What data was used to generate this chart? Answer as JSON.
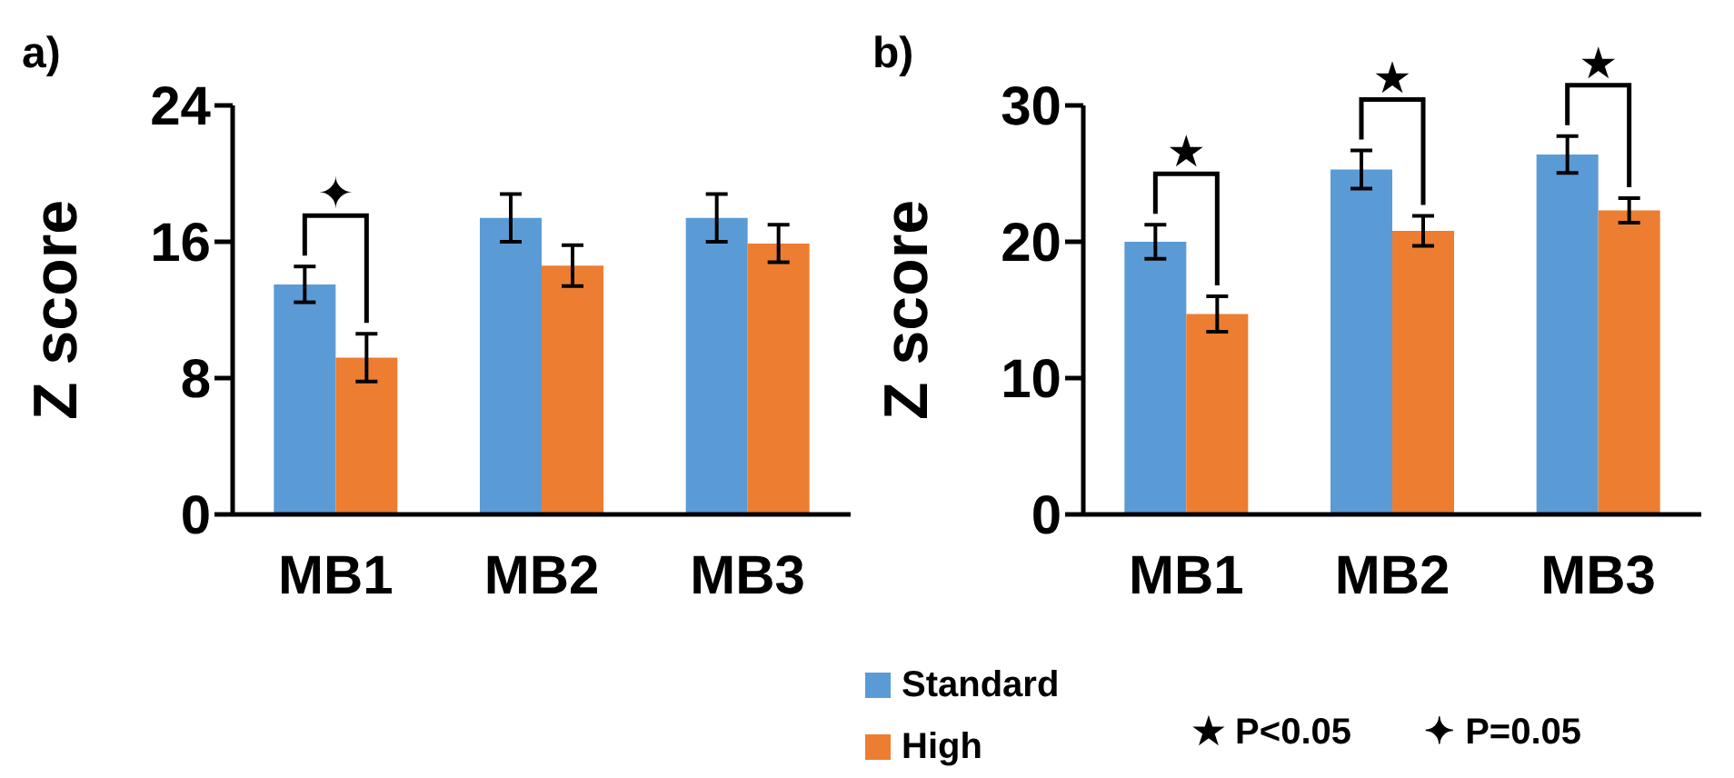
{
  "chart_data": [
    {
      "type": "bar",
      "title": "a)",
      "ylabel": "Z score",
      "categories": [
        "MB1",
        "MB2",
        "MB3"
      ],
      "series": [
        {
          "color": "#5b9bd5",
          "values": [
            13.5,
            17.4,
            17.4
          ],
          "errors": [
            1.05,
            1.4,
            1.4
          ]
        },
        {
          "color": "#ed7d31",
          "values": [
            9.2,
            14.6,
            15.9
          ],
          "errors": [
            1.4,
            1.2,
            1.1
          ]
        }
      ],
      "ylim": [
        0,
        24
      ],
      "yticks": [
        0,
        8,
        16,
        24
      ],
      "grid": false,
      "legend": false,
      "annotations": [
        "✦"
      ]
    },
    {
      "type": "bar",
      "title": "b)",
      "ylabel": "Z score",
      "categories": [
        "MB1",
        "MB2",
        "MB3"
      ],
      "series": [
        {
          "name": "Standard",
          "color": "#5b9bd5",
          "values": [
            20.0,
            25.3,
            26.4
          ],
          "errors": [
            1.25,
            1.4,
            1.35
          ]
        },
        {
          "name": "High",
          "color": "#ed7d31",
          "values": [
            14.7,
            20.8,
            22.3
          ],
          "errors": [
            1.3,
            1.1,
            0.9
          ]
        }
      ],
      "ylim": [
        0,
        30
      ],
      "yticks": [
        0,
        10,
        20,
        30
      ],
      "grid": false,
      "legend": "bottom left",
      "annotations": [
        "★",
        "★",
        "★",
        "★ P<0.05",
        "✦ P=0.05"
      ]
    }
  ]
}
